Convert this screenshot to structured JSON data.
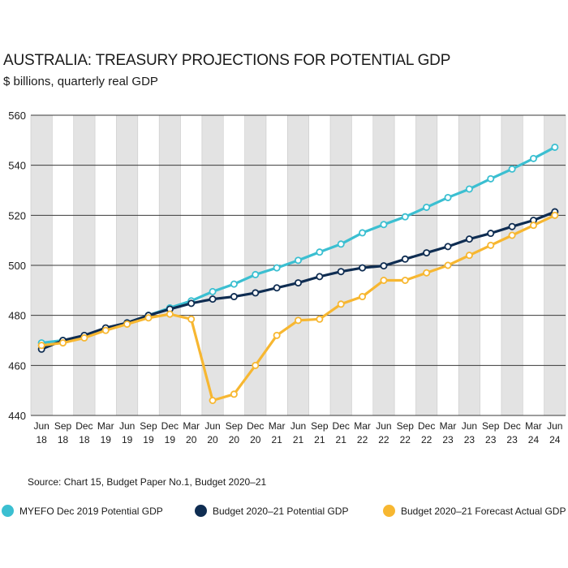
{
  "header": {
    "title": "AUSTRALIA: TREASURY PROJECTIONS FOR POTENTIAL GDP",
    "subtitle": "$ billions, quarterly real GDP"
  },
  "footer": {
    "source": "Source: Chart 15, Budget Paper No.1, Budget 2020–21"
  },
  "legend": [
    {
      "label": "MYEFO Dec 2019 Potential GDP",
      "color": "#3bbfd1"
    },
    {
      "label": "Budget 2020–21 Potential GDP",
      "color": "#0f2d52"
    },
    {
      "label": "Budget 2020–21 Forecast Actual GDP",
      "color": "#f7b731"
    }
  ],
  "chart_data": {
    "type": "line",
    "title": "AUSTRALIA: TREASURY PROJECTIONS FOR POTENTIAL GDP",
    "subtitle": "$ billions, quarterly real GDP",
    "ylim": [
      440,
      560
    ],
    "yticks": [
      440,
      460,
      480,
      500,
      520,
      540,
      560
    ],
    "grid": true,
    "categories": [
      [
        "Jun",
        "18"
      ],
      [
        "Sep",
        "18"
      ],
      [
        "Dec",
        "18"
      ],
      [
        "Mar",
        "19"
      ],
      [
        "Jun",
        "19"
      ],
      [
        "Sep",
        "19"
      ],
      [
        "Dec",
        "19"
      ],
      [
        "Mar",
        "20"
      ],
      [
        "Jun",
        "20"
      ],
      [
        "Sep",
        "20"
      ],
      [
        "Dec",
        "20"
      ],
      [
        "Mar",
        "21"
      ],
      [
        "Jun",
        "21"
      ],
      [
        "Sep",
        "21"
      ],
      [
        "Dec",
        "21"
      ],
      [
        "Mar",
        "22"
      ],
      [
        "Jun",
        "22"
      ],
      [
        "Sep",
        "22"
      ],
      [
        "Dec",
        "22"
      ],
      [
        "Mar",
        "23"
      ],
      [
        "Jun",
        "23"
      ],
      [
        "Sep",
        "23"
      ],
      [
        "Dec",
        "23"
      ],
      [
        "Mar",
        "24"
      ],
      [
        "Jun",
        "24"
      ]
    ],
    "series": [
      {
        "name": "MYEFO Dec 2019 Potential GDP",
        "color": "#3bbfd1",
        "x_start": 0,
        "values": [
          469,
          470,
          471.5,
          474.5,
          477,
          480,
          483,
          485.8,
          489.5,
          492.5,
          496.3,
          499,
          502,
          505.3,
          508.5,
          513,
          516.3,
          519.4,
          523.2,
          527.1,
          530.5,
          534.6,
          538.5,
          542.7,
          547.2
        ]
      },
      {
        "name": "Budget 2020–21 Potential GDP",
        "color": "#0f2d52",
        "x_start": 0,
        "values": [
          466.5,
          470,
          472,
          475,
          477,
          480,
          482.5,
          484.8,
          486.5,
          487.5,
          489,
          491,
          493,
          495.5,
          497.5,
          499,
          499.8,
          502.5,
          505,
          507.5,
          510.5,
          512.8,
          515.5,
          518,
          521.4
        ]
      },
      {
        "name": "Budget 2020–21 Forecast Actual GDP",
        "color": "#f7b731",
        "x_start": 0,
        "values": [
          468,
          469,
          471,
          474,
          476.5,
          479,
          480.5,
          478.5,
          446,
          448.5,
          460,
          472,
          478,
          478.5,
          484.5,
          487.5,
          494,
          494,
          497,
          500,
          504,
          508,
          512,
          516,
          520
        ]
      }
    ]
  }
}
